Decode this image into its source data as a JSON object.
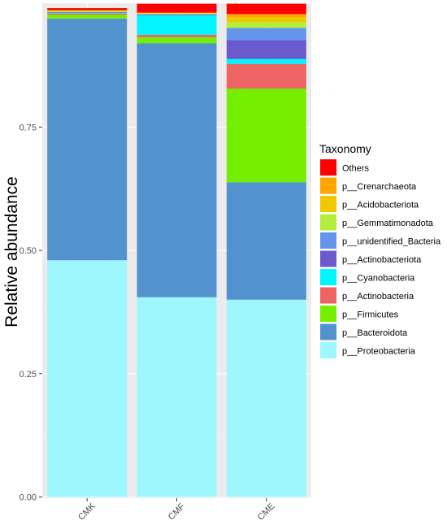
{
  "chart_data": {
    "type": "bar",
    "stacked": true,
    "categories": [
      "CMK",
      "CMF",
      "CME"
    ],
    "ylabel": "Relative abundance",
    "ylim": [
      0,
      1
    ],
    "yticks": [
      "0.00",
      "0.25",
      "0.50",
      "0.75"
    ],
    "ytick_values": [
      0,
      0.25,
      0.5,
      0.75
    ],
    "grid": true,
    "legend": {
      "title": "Taxonomy",
      "position": "right"
    },
    "series": [
      {
        "name": "p__Proteobacteria",
        "color": "#9EF7FC",
        "values": [
          0.48,
          0.405,
          0.4
        ]
      },
      {
        "name": "p__Bacteroidota",
        "color": "#5293CF",
        "values": [
          0.49,
          0.515,
          0.238
        ]
      },
      {
        "name": "p__Firmicutes",
        "color": "#76EE00",
        "values": [
          0.008,
          0.012,
          0.19
        ]
      },
      {
        "name": "p__Actinobacteria",
        "color": "#EE6363",
        "values": [
          0.002,
          0.005,
          0.05
        ]
      },
      {
        "name": "p__Cyanobacteria",
        "color": "#00F5FF",
        "values": [
          0.001,
          0.04,
          0.01
        ]
      },
      {
        "name": "p__Actinobacteriota",
        "color": "#6A5ACD",
        "values": [
          0.001,
          0.001,
          0.038
        ]
      },
      {
        "name": "p__unidentified_Bacteria",
        "color": "#6495ED",
        "values": [
          0.001,
          0.001,
          0.025
        ]
      },
      {
        "name": "p__Gemmatimonadota",
        "color": "#B3EE3A",
        "values": [
          0.002,
          0.001,
          0.012
        ]
      },
      {
        "name": "p__Acidobacteriota",
        "color": "#EEC900",
        "values": [
          0.001,
          0.001,
          0.01
        ]
      },
      {
        "name": "p__Crenarchaeota",
        "color": "#FFA500",
        "values": [
          0.001,
          0.001,
          0.006
        ]
      },
      {
        "name": "Others",
        "color": "#FF0000",
        "values": [
          0.004,
          0.018,
          0.021
        ]
      }
    ],
    "legend_order": [
      "Others",
      "p__Crenarchaeota",
      "p__Acidobacteriota",
      "p__Gemmatimonadota",
      "p__unidentified_Bacteria",
      "p__Actinobacteriota",
      "p__Cyanobacteria",
      "p__Actinobacteria",
      "p__Firmicutes",
      "p__Bacteroidota",
      "p__Proteobacteria"
    ]
  },
  "colors": {
    "panel_background": "#EBEBEB",
    "grid_major": "#FFFFFF",
    "grid_minor": "#F2F2F2",
    "axis_text": "#4D4D4D"
  }
}
